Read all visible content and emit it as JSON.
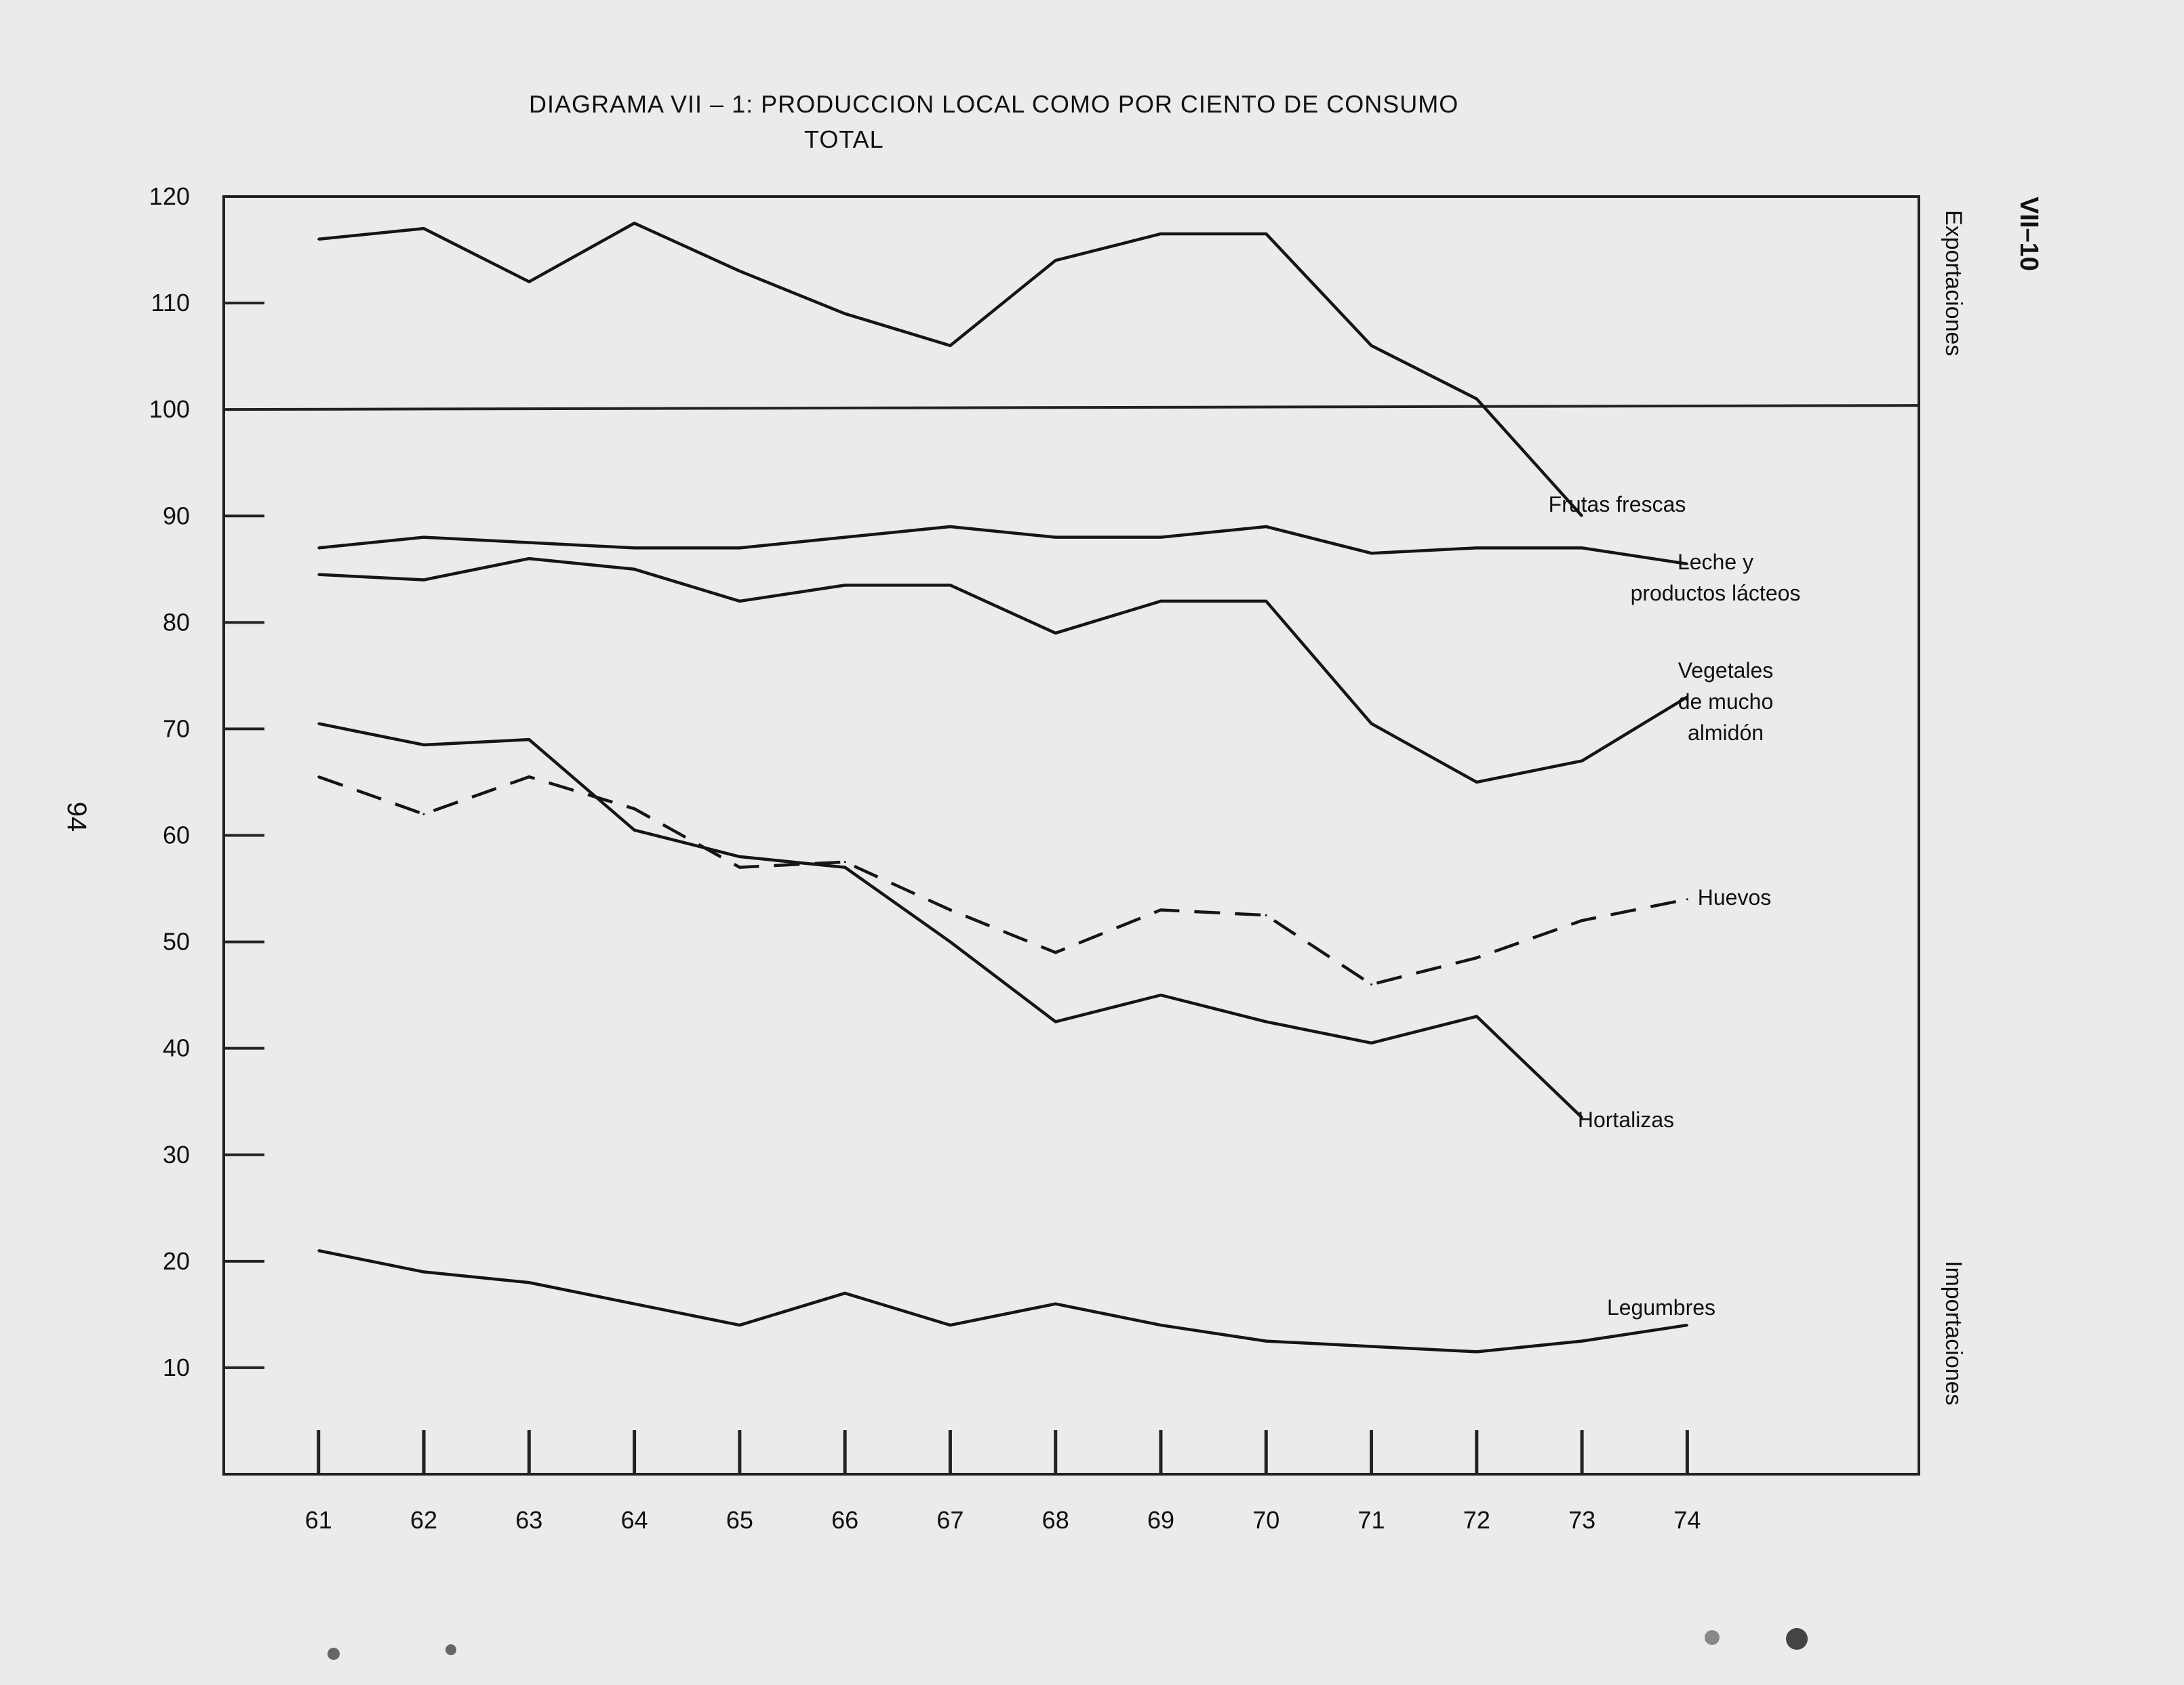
{
  "page": {
    "page_number": "94",
    "section_label": "VII–10"
  },
  "chart_data": {
    "type": "line",
    "title": "DIAGRAMA VII – 1: PRODUCCION LOCAL COMO POR CIENTO DE CONSUMO TOTAL",
    "title_lines": [
      "DIAGRAMA VII – 1: PRODUCCION LOCAL COMO POR CIENTO DE CONSUMO",
      "TOTAL"
    ],
    "xlabel": "",
    "ylabel": "",
    "x": [
      61,
      62,
      63,
      64,
      65,
      66,
      67,
      68,
      69,
      70,
      71,
      72,
      73,
      74
    ],
    "x_tick_labels": [
      "61",
      "62",
      "63",
      "64",
      "65",
      "66",
      "67",
      "68",
      "69",
      "70",
      "71",
      "72",
      "73",
      "74"
    ],
    "y_ticks": [
      10,
      20,
      30,
      40,
      50,
      60,
      70,
      80,
      90,
      100,
      110,
      120
    ],
    "y_tick_labels": [
      "10",
      "20",
      "30",
      "40",
      "50",
      "60",
      "70",
      "80",
      "90",
      "100",
      "110",
      "120"
    ],
    "ylim": [
      0,
      120
    ],
    "xlim": [
      60.1,
      76.2
    ],
    "reference_line": 100,
    "region_labels": {
      "above": "Exportaciones",
      "below": "Importaciones"
    },
    "grid": false,
    "series": [
      {
        "name": "Frutas frescas",
        "label_lines": [
          "Frutas frescas"
        ],
        "style": "solid",
        "x": [
          61,
          62,
          63,
          64,
          65,
          66,
          67,
          68,
          69,
          70,
          71,
          72,
          73
        ],
        "values": [
          116,
          117,
          112,
          117.5,
          113,
          109,
          106,
          114,
          116.5,
          116.5,
          106,
          101,
          90
        ]
      },
      {
        "name": "Leche y productos lácteos",
        "label_lines": [
          "Leche y",
          "productos lácteos"
        ],
        "style": "solid",
        "x": [
          61,
          62,
          63,
          64,
          65,
          66,
          67,
          68,
          69,
          70,
          71,
          72,
          73,
          74
        ],
        "values": [
          87,
          88,
          87.5,
          87,
          87,
          88,
          89,
          88,
          88,
          89,
          86.5,
          87,
          87,
          85.5
        ]
      },
      {
        "name": "Vegetales de mucho almidón",
        "label_lines": [
          "Vegetales",
          "de mucho",
          "almidón"
        ],
        "style": "solid",
        "x": [
          61,
          62,
          63,
          64,
          65,
          66,
          67,
          68,
          69,
          70,
          71,
          72,
          73,
          74
        ],
        "values": [
          84.5,
          84,
          86,
          85,
          82,
          83.5,
          83.5,
          79,
          82,
          82,
          70.5,
          65,
          67,
          73
        ]
      },
      {
        "name": "Huevos",
        "label_lines": [
          "Huevos"
        ],
        "style": "dashed",
        "x": [
          61,
          62,
          63,
          64,
          65,
          66,
          67,
          68,
          69,
          70,
          71,
          72,
          73,
          74
        ],
        "values": [
          65.5,
          62,
          65.5,
          62.5,
          57,
          57.5,
          53,
          49,
          53,
          52.5,
          46,
          48.5,
          52,
          54
        ]
      },
      {
        "name": "Hortalizas",
        "label_lines": [
          "Hortalizas"
        ],
        "style": "solid",
        "x": [
          61,
          62,
          63,
          64,
          65,
          66,
          67,
          68,
          69,
          70,
          71,
          72,
          73
        ],
        "values": [
          70.5,
          68.5,
          69,
          60.5,
          58,
          57,
          50,
          42.5,
          45,
          42.5,
          40.5,
          43,
          33.5
        ]
      },
      {
        "name": "Legumbres",
        "label_lines": [
          "Legumbres"
        ],
        "style": "solid",
        "x": [
          61,
          62,
          63,
          64,
          65,
          66,
          67,
          68,
          69,
          70,
          71,
          72,
          73,
          74
        ],
        "values": [
          21,
          19,
          18,
          16,
          14,
          17,
          14,
          16,
          14,
          12.5,
          12,
          11.5,
          12.5,
          14
        ]
      }
    ]
  }
}
